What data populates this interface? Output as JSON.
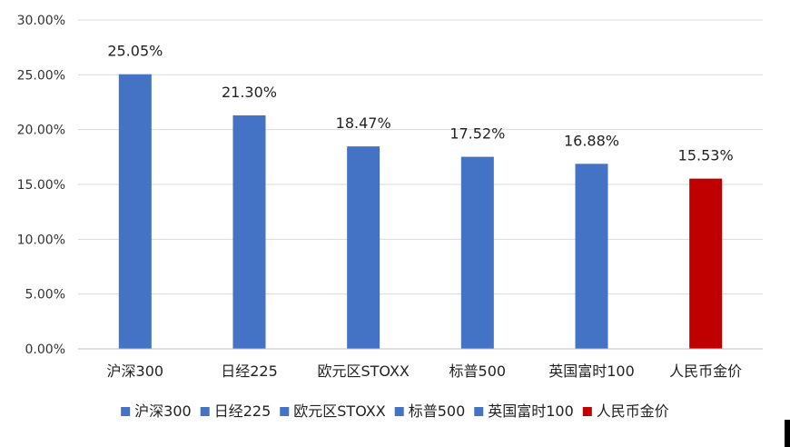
{
  "chart_data": {
    "type": "bar",
    "categories": [
      "沪深300",
      "日经225",
      "欧元区STOXX",
      "标普500",
      "英国富时100",
      "人民币金价"
    ],
    "values": [
      25.05,
      21.3,
      18.47,
      17.52,
      16.88,
      15.53
    ],
    "data_labels": [
      "25.05%",
      "21.30%",
      "18.47%",
      "17.52%",
      "16.88%",
      "15.53%"
    ],
    "colors": [
      "#4472c4",
      "#4472c4",
      "#4472c4",
      "#4472c4",
      "#4472c4",
      "#c00000"
    ],
    "y_ticks": [
      "0.00%",
      "5.00%",
      "10.00%",
      "15.00%",
      "20.00%",
      "25.00%",
      "30.00%"
    ],
    "ylim": [
      0,
      30
    ],
    "title": "",
    "xlabel": "",
    "ylabel": "",
    "grid": true,
    "legend_position": "bottom"
  }
}
